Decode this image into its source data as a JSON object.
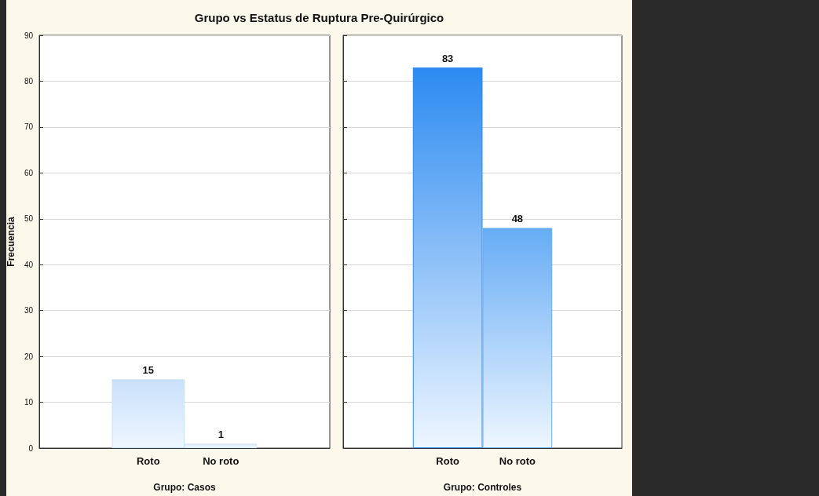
{
  "chart_data": [
    {
      "type": "bar",
      "title": "Grupo vs Estatus de Ruptura Pre-Quirúrgico",
      "categories": [
        "Roto",
        "No roto"
      ],
      "values": [
        15,
        1
      ],
      "colors": [
        "#c9e0fa",
        "#dbeafc"
      ],
      "xlabel": "Grupo: Casos",
      "ylabel": "Frecuencia",
      "ylim": [
        0,
        90
      ],
      "yticks": [
        0,
        10,
        20,
        30,
        40,
        50,
        60,
        70,
        80,
        90
      ],
      "grid": "y",
      "data_labels": true
    },
    {
      "type": "bar",
      "categories": [
        "Roto",
        "No roto"
      ],
      "values": [
        83,
        48
      ],
      "colors": [
        "#2b8af0",
        "#66acf5"
      ],
      "xlabel": "Grupo: Controles",
      "ylim": [
        0,
        90
      ],
      "yticks": [
        0,
        10,
        20,
        30,
        40,
        50,
        60,
        70,
        80,
        90
      ],
      "grid": "y",
      "data_labels": true,
      "tick_labels": "x"
    }
  ]
}
